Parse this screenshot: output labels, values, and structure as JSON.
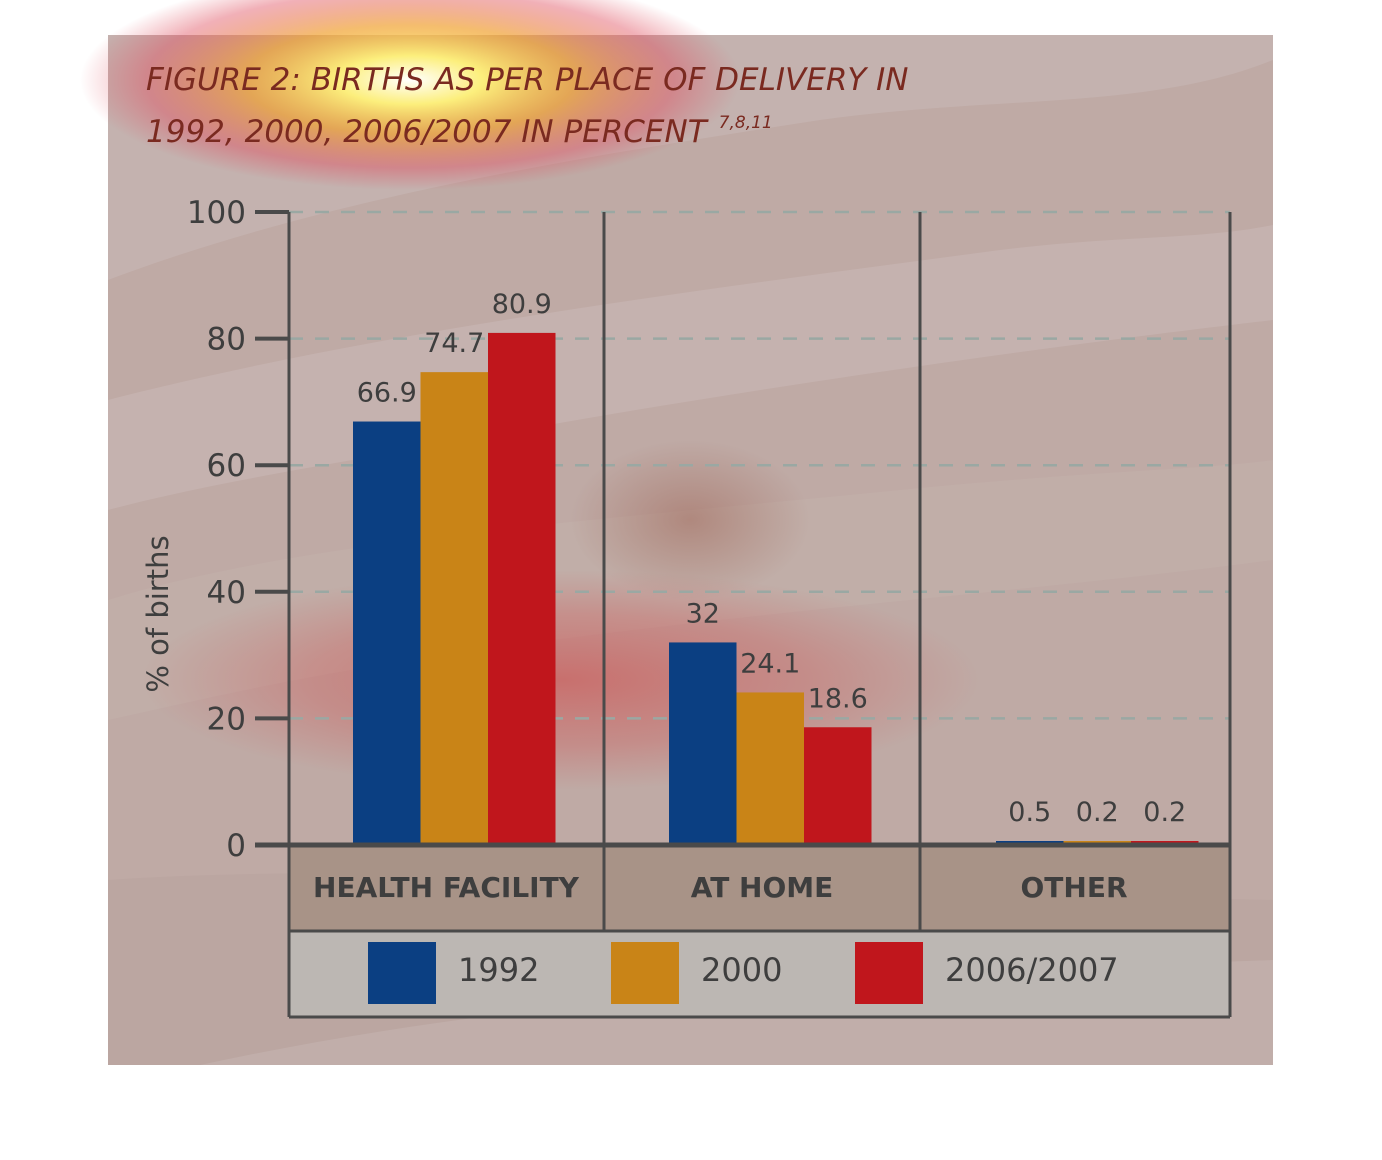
{
  "title": {
    "line1": "FIGURE 2: BIRTHS AS PER PLACE OF DELIVERY IN",
    "line2": "1992, 2000, 2006/2007 IN PERCENT",
    "refs": "7,8,11"
  },
  "chart_data": {
    "type": "bar",
    "categories": [
      "HEALTH FACILITY",
      "AT HOME",
      "OTHER"
    ],
    "series": [
      {
        "name": "1992",
        "values": [
          66.9,
          32,
          0.5
        ],
        "labels": [
          "66.9",
          "32",
          "0.5"
        ],
        "color": "#0b3f82"
      },
      {
        "name": "2000",
        "values": [
          74.7,
          24.1,
          0.2
        ],
        "labels": [
          "74.7",
          "24.1",
          "0.2"
        ],
        "color": "#c98417"
      },
      {
        "name": "2006/2007",
        "values": [
          80.9,
          18.6,
          0.2
        ],
        "labels": [
          "80.9",
          "18.6",
          "0.2"
        ],
        "color": "#c0161c"
      }
    ],
    "ylabel": "% of births",
    "ylim": [
      0,
      100
    ],
    "yticks": [
      0,
      20,
      40,
      60,
      80,
      100
    ],
    "grid": true,
    "legend": "bottom"
  },
  "colors": {
    "background": "#bfaaa5",
    "band": "#a89387",
    "legend_bg": "#bcb7b3",
    "axis": "#4a4a4a",
    "grid": "#9aa8a3",
    "highlight": "#ffee55"
  }
}
